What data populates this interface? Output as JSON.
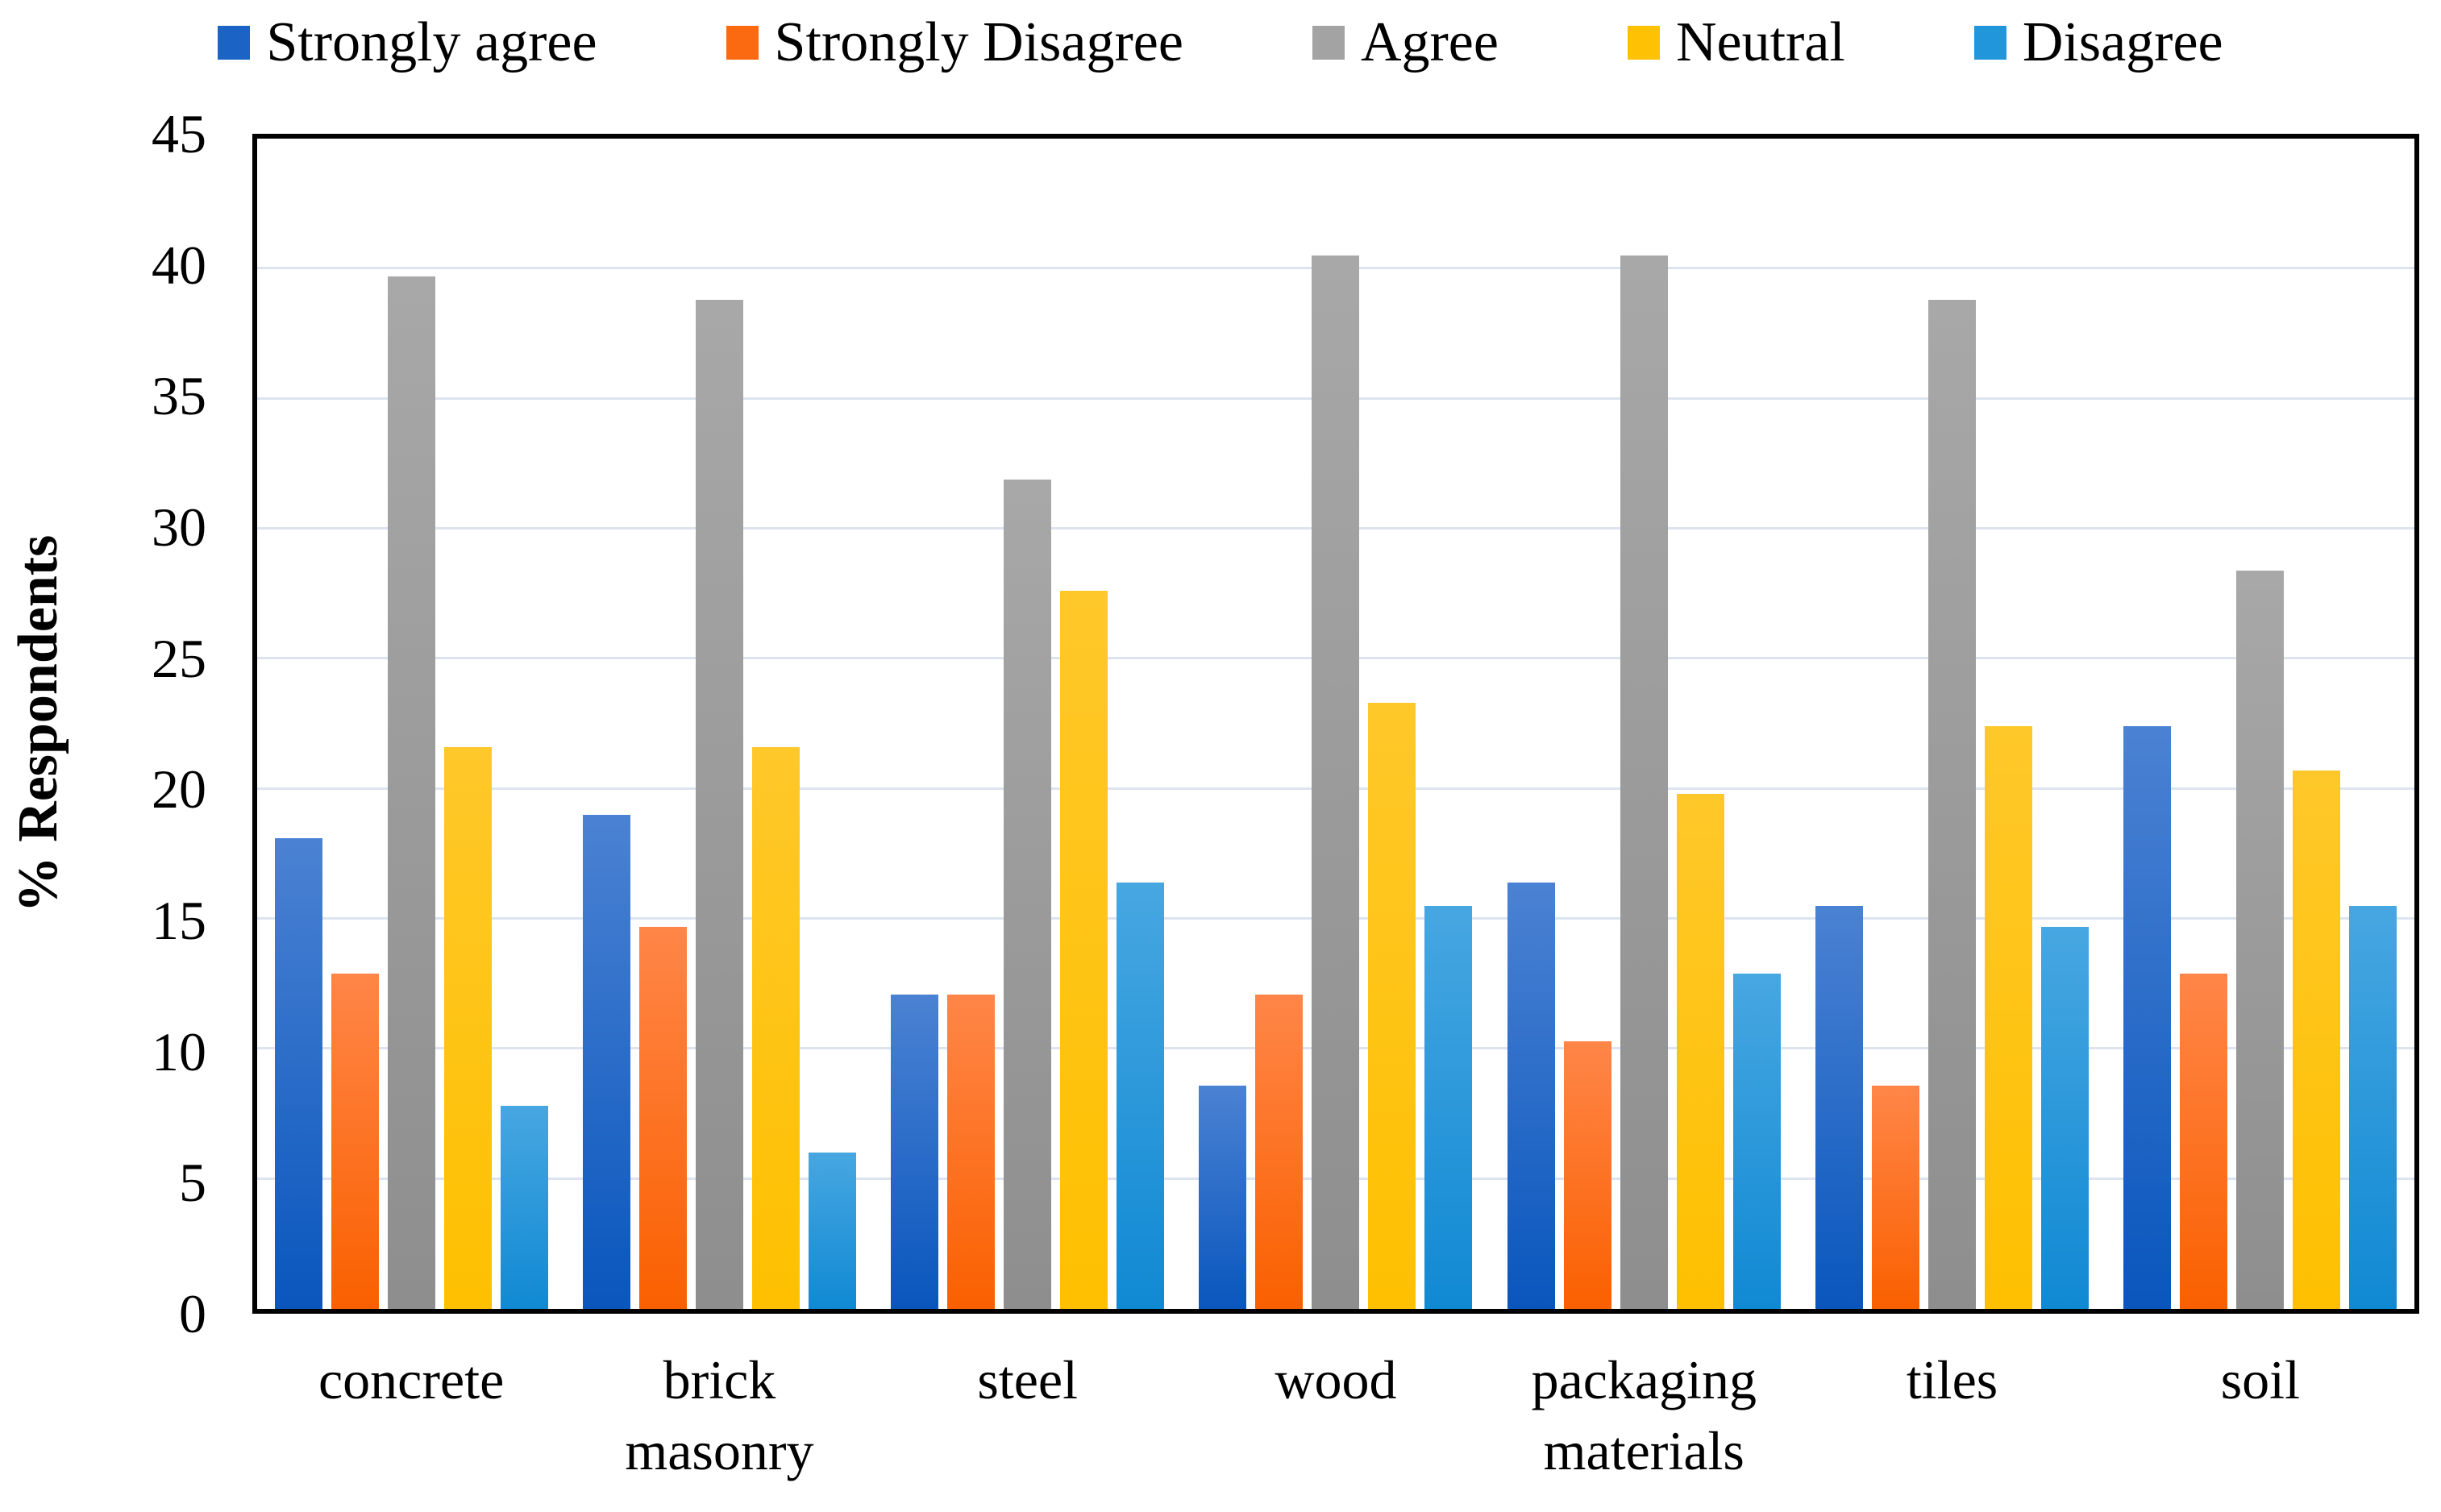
{
  "chart_data": {
    "type": "bar",
    "title": "",
    "xlabel": "",
    "ylabel": "% Respondents",
    "ylim": [
      0,
      45
    ],
    "yticks": [
      0,
      5,
      10,
      15,
      20,
      25,
      30,
      35,
      40,
      45
    ],
    "grid": true,
    "legend_position": "top",
    "categories": [
      "concrete",
      "brick masonry",
      "steel",
      "wood",
      "packaging materials",
      "tiles",
      "soil"
    ],
    "category_label_lines": [
      [
        "concrete"
      ],
      [
        "brick",
        "masonry"
      ],
      [
        "steel"
      ],
      [
        "wood"
      ],
      [
        "packaging",
        "materials"
      ],
      [
        "tiles"
      ],
      [
        "soil"
      ]
    ],
    "series": [
      {
        "name": "Strongly agree",
        "color": "#1b64c6",
        "gradient_top": "#4b82d3",
        "gradient_bottom": "#0956bd",
        "values": [
          18.1,
          19.0,
          12.1,
          8.6,
          16.4,
          15.5,
          22.4
        ]
      },
      {
        "name": "Strongly Disagree",
        "color": "#fb6a10",
        "gradient_top": "#ff8648",
        "gradient_bottom": "#fa6000",
        "values": [
          12.9,
          14.7,
          12.1,
          12.1,
          10.3,
          8.6,
          12.9
        ]
      },
      {
        "name": "Agree",
        "color": "#a3a3a3",
        "gradient_top": "#a8a8a8",
        "gradient_bottom": "#8e8e8e",
        "values": [
          39.7,
          38.8,
          31.9,
          40.5,
          40.5,
          38.8,
          28.4
        ]
      },
      {
        "name": "Neutral",
        "color": "#fec103",
        "gradient_top": "#ffc82a",
        "gradient_bottom": "#fec000",
        "values": [
          21.6,
          21.6,
          27.6,
          23.3,
          19.8,
          22.4,
          20.7
        ]
      },
      {
        "name": "Disagree",
        "color": "#2196db",
        "gradient_top": "#47a7e1",
        "gradient_bottom": "#1089d3",
        "values": [
          7.8,
          6.0,
          16.4,
          15.5,
          12.9,
          14.7,
          15.5
        ]
      }
    ],
    "gridline_color": "#dde4f0",
    "axis_border_color": "#000000"
  }
}
